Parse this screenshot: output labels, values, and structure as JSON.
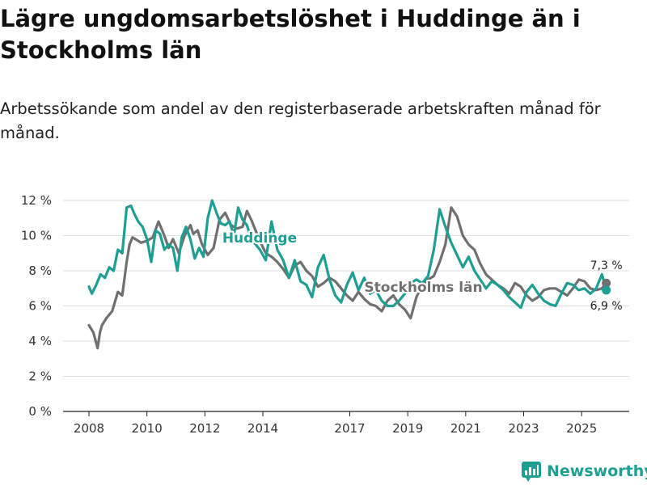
{
  "title": "Lägre ungdomsarbetslöshet i Huddinge än i Stockholms län",
  "subtitle": "Arbetssökande som andel av den registerbaserade arbetskraften månad för månad.",
  "brand": {
    "name": "Newsworthy",
    "icon": "bar-chart-logo-icon",
    "color": "#1f9e93"
  },
  "chart_data": {
    "type": "line",
    "ylim": [
      0,
      12
    ],
    "yticks": [
      0,
      2,
      4,
      6,
      8,
      10,
      12
    ],
    "ytick_labels": [
      "0 %",
      "2 %",
      "4 %",
      "6 %",
      "8 %",
      "10 %",
      "12 %"
    ],
    "xlim": [
      2008.0,
      2026.0
    ],
    "xticks": [
      2008,
      2010,
      2012,
      2014,
      2017,
      2019,
      2021,
      2023,
      2025
    ],
    "xtick_labels": [
      "2008",
      "2010",
      "2012",
      "2014",
      "2017",
      "2019",
      "2021",
      "2023",
      "2025"
    ],
    "grid": true,
    "series": [
      {
        "name": "Stockholms län",
        "color": "#707070",
        "label_at": [
          2017.5,
          6.8
        ],
        "x": [
          2008.0,
          2008.15,
          2008.3,
          2008.38,
          2008.45,
          2008.6,
          2008.8,
          2009.0,
          2009.15,
          2009.3,
          2009.4,
          2009.5,
          2009.6,
          2009.8,
          2010.0,
          2010.2,
          2010.4,
          2010.6,
          2010.75,
          2010.9,
          2011.1,
          2011.3,
          2011.5,
          2011.6,
          2011.75,
          2011.9,
          2012.1,
          2012.3,
          2012.5,
          2012.7,
          2012.9,
          2013.1,
          2013.3,
          2013.45,
          2013.6,
          2013.75,
          2013.9,
          2014.1,
          2014.3,
          2014.5,
          2014.7,
          2014.9,
          2015.1,
          2015.3,
          2015.5,
          2015.7,
          2015.9,
          2016.1,
          2016.3,
          2016.5,
          2016.7,
          2016.9,
          2017.1,
          2017.3,
          2017.5,
          2017.7,
          2017.9,
          2018.1,
          2018.3,
          2018.5,
          2018.7,
          2018.9,
          2019.1,
          2019.3,
          2019.5,
          2019.7,
          2019.9,
          2020.1,
          2020.3,
          2020.5,
          2020.7,
          2020.9,
          2021.1,
          2021.3,
          2021.5,
          2021.7,
          2021.9,
          2022.1,
          2022.3,
          2022.5,
          2022.7,
          2022.9,
          2023.1,
          2023.3,
          2023.5,
          2023.7,
          2023.9,
          2024.1,
          2024.3,
          2024.5,
          2024.7,
          2024.9,
          2025.1,
          2025.3,
          2025.5,
          2025.7,
          2025.85
        ],
        "y": [
          4.9,
          4.5,
          3.6,
          4.5,
          4.9,
          5.3,
          5.7,
          6.8,
          6.6,
          8.5,
          9.5,
          9.9,
          9.8,
          9.6,
          9.7,
          9.9,
          10.8,
          10.0,
          9.3,
          9.8,
          9.0,
          10.0,
          10.6,
          10.1,
          10.3,
          9.5,
          8.9,
          9.3,
          10.9,
          11.3,
          10.6,
          10.4,
          10.5,
          11.4,
          10.9,
          10.3,
          9.7,
          9.0,
          8.8,
          8.5,
          8.1,
          7.6,
          8.3,
          8.5,
          8.0,
          7.7,
          7.1,
          7.3,
          7.6,
          7.4,
          7.0,
          6.6,
          6.3,
          6.8,
          6.4,
          6.1,
          6.0,
          5.7,
          6.3,
          6.6,
          6.1,
          5.8,
          5.3,
          6.5,
          7.2,
          7.5,
          7.7,
          8.5,
          9.5,
          11.6,
          11.1,
          10.0,
          9.5,
          9.2,
          8.4,
          7.8,
          7.5,
          7.2,
          7.0,
          6.7,
          7.3,
          7.1,
          6.6,
          6.3,
          6.5,
          6.9,
          7.0,
          7.0,
          6.8,
          6.6,
          7.0,
          7.5,
          7.4,
          7.0,
          6.9,
          7.0,
          7.3
        ]
      },
      {
        "name": "Huddinge",
        "color": "#1f9e93",
        "label_at": [
          2012.6,
          9.6
        ],
        "x": [
          2008.0,
          2008.1,
          2008.25,
          2008.4,
          2008.55,
          2008.7,
          2008.85,
          2009.0,
          2009.15,
          2009.3,
          2009.45,
          2009.55,
          2009.7,
          2009.85,
          2010.0,
          2010.15,
          2010.3,
          2010.45,
          2010.6,
          2010.75,
          2010.9,
          2011.05,
          2011.2,
          2011.35,
          2011.5,
          2011.65,
          2011.8,
          2011.95,
          2012.1,
          2012.25,
          2012.4,
          2012.55,
          2012.7,
          2012.85,
          2013.0,
          2013.15,
          2013.3,
          2013.45,
          2013.6,
          2013.75,
          2013.9,
          2014.1,
          2014.3,
          2014.5,
          2014.7,
          2014.9,
          2015.1,
          2015.3,
          2015.5,
          2015.7,
          2015.9,
          2016.1,
          2016.3,
          2016.5,
          2016.7,
          2016.9,
          2017.1,
          2017.3,
          2017.5,
          2017.7,
          2017.9,
          2018.1,
          2018.3,
          2018.5,
          2018.7,
          2018.9,
          2019.1,
          2019.3,
          2019.5,
          2019.7,
          2019.9,
          2020.1,
          2020.3,
          2020.5,
          2020.7,
          2020.9,
          2021.1,
          2021.3,
          2021.5,
          2021.7,
          2021.9,
          2022.1,
          2022.3,
          2022.5,
          2022.7,
          2022.9,
          2023.1,
          2023.3,
          2023.5,
          2023.7,
          2023.9,
          2024.1,
          2024.3,
          2024.5,
          2024.7,
          2024.9,
          2025.1,
          2025.3,
          2025.5,
          2025.7,
          2025.85
        ],
        "y": [
          7.1,
          6.7,
          7.2,
          7.8,
          7.6,
          8.2,
          8.0,
          9.2,
          9.0,
          11.6,
          11.7,
          11.3,
          10.8,
          10.5,
          9.8,
          8.5,
          10.3,
          10.1,
          9.2,
          9.5,
          9.3,
          8.0,
          9.9,
          10.5,
          9.8,
          8.7,
          9.3,
          8.8,
          11.0,
          12.0,
          11.3,
          10.7,
          10.6,
          10.8,
          10.0,
          11.6,
          10.9,
          10.6,
          9.8,
          9.5,
          9.2,
          8.6,
          10.8,
          9.2,
          8.6,
          7.6,
          8.6,
          7.4,
          7.2,
          6.5,
          8.2,
          8.9,
          7.5,
          6.6,
          6.2,
          7.2,
          7.9,
          6.9,
          7.6,
          6.7,
          6.9,
          6.3,
          6.0,
          6.0,
          6.3,
          6.7,
          7.3,
          7.5,
          7.3,
          7.7,
          9.2,
          11.5,
          10.5,
          9.6,
          8.9,
          8.2,
          8.8,
          8.0,
          7.5,
          7.0,
          7.4,
          7.2,
          6.9,
          6.5,
          6.2,
          5.9,
          6.8,
          7.2,
          6.7,
          6.3,
          6.1,
          6.0,
          6.7,
          7.3,
          7.2,
          6.9,
          7.0,
          6.7,
          7.0,
          7.8,
          6.9
        ]
      }
    ],
    "end_labels": [
      {
        "series": "Stockholms län",
        "text": "7,3 %"
      },
      {
        "series": "Huddinge",
        "text": "6,9 %"
      }
    ]
  }
}
